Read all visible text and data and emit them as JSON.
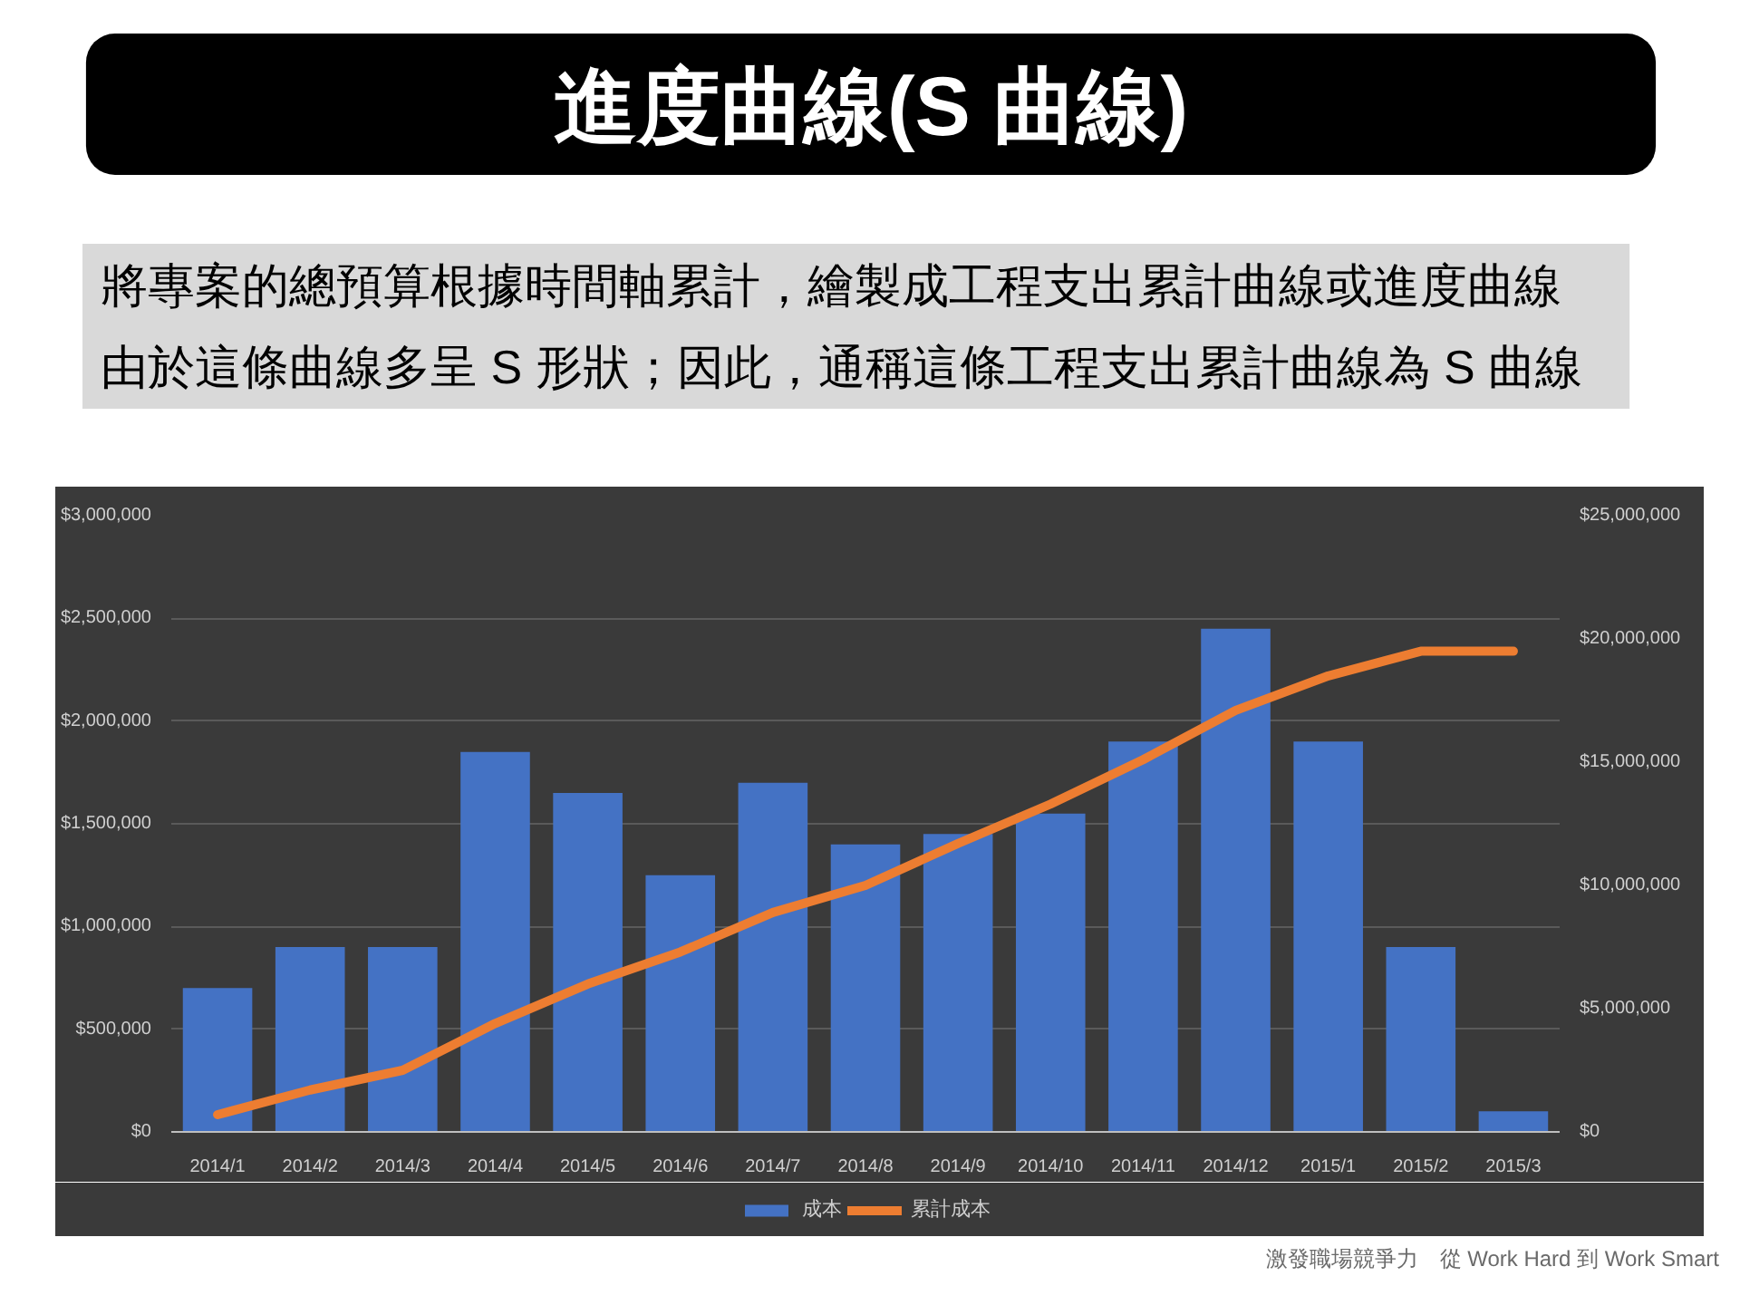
{
  "chart_data": {
    "type": "bar",
    "title": "進度曲線(S 曲線)",
    "subtitle": "將專案的總預算根據時間軸累計，繪製成工程支出累計曲線或進度曲線由於這條曲線多呈 S 形狀；因此，通稱這條工程支出累計曲線為 S 曲線",
    "categories": [
      "2014/1",
      "2014/2",
      "2014/3",
      "2014/4",
      "2014/5",
      "2014/6",
      "2014/7",
      "2014/8",
      "2014/9",
      "2014/10",
      "2014/11",
      "2014/12",
      "2015/1",
      "2015/2",
      "2015/3"
    ],
    "series": [
      {
        "name": "成本",
        "color": "#4472c4",
        "values": [
          700000,
          900000,
          900000,
          1850000,
          1650000,
          1250000,
          1700000,
          1400000,
          1450000,
          1550000,
          1900000,
          2450000,
          1900000,
          900000,
          100000
        ]
      },
      {
        "name": "累計成本",
        "type": "line",
        "axis": "y2",
        "color": "#ed7d31",
        "values": [
          700000,
          1700000,
          2500000,
          4400000,
          6000000,
          7300000,
          8900000,
          10000000,
          11700000,
          13300000,
          15100000,
          17100000,
          18500000,
          19500000,
          19500000
        ]
      }
    ],
    "ylim": [
      0,
      3000000
    ],
    "yticks": [
      {
        "value": 0,
        "label": "$0"
      },
      {
        "value": 500000,
        "label": "$500,000"
      },
      {
        "value": 1000000,
        "label": "$1,000,000"
      },
      {
        "value": 1500000,
        "label": "$1,500,000"
      },
      {
        "value": 2000000,
        "label": "$2,000,000"
      },
      {
        "value": 2500000,
        "label": "$2,500,000"
      },
      {
        "value": 3000000,
        "label": "$3,000,000"
      }
    ],
    "y2lim": [
      0,
      25000000
    ],
    "y2ticks": [
      {
        "value": 0,
        "label": "$0"
      },
      {
        "value": 5000000,
        "label": "$5,000,000"
      },
      {
        "value": 10000000,
        "label": "$10,000,000"
      },
      {
        "value": 15000000,
        "label": "$15,000,000"
      },
      {
        "value": 20000000,
        "label": "$20,000,000"
      },
      {
        "value": 25000000,
        "label": "$25,000,000"
      }
    ],
    "grid": "y",
    "legend": "bottom",
    "annotations": [
      "激發職場競爭力　從 Work Hard 到 Work Smart"
    ]
  }
}
